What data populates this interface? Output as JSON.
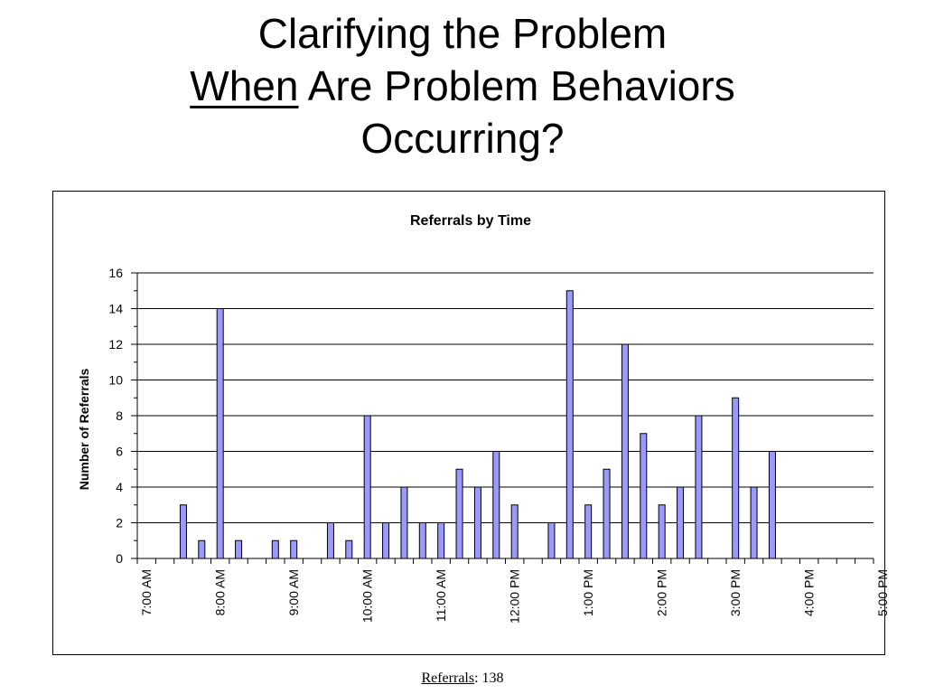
{
  "slide": {
    "title_line1": "Clarifying the Problem",
    "title_line2_emph": "When",
    "title_line2_rest": " Are Problem Behaviors",
    "title_line3": "Occurring?"
  },
  "footer": {
    "label": "Referrals",
    "value": ": 138"
  },
  "colors": {
    "bar_fill": "#9999FF",
    "bar_stroke": "#000000",
    "grid": "#000000"
  },
  "chart_data": {
    "type": "bar",
    "title": "Referrals by Time",
    "xlabel": "",
    "ylabel": "Number of Referrals",
    "ylim": [
      0,
      16
    ],
    "yticks": [
      0,
      2,
      4,
      6,
      8,
      10,
      12,
      14,
      16
    ],
    "grid": true,
    "legend": "none",
    "xticks": [
      "7:00 AM",
      "8:00 AM",
      "9:00 AM",
      "10:00 AM",
      "11:00 AM",
      "12:00 PM",
      "1:00 PM",
      "2:00 PM",
      "3:00 PM",
      "4:00 PM",
      "5:00 PM"
    ],
    "categories": [
      "7:00",
      "7:15",
      "7:30",
      "7:45",
      "8:00",
      "8:15",
      "8:30",
      "8:45",
      "9:00",
      "9:15",
      "9:30",
      "9:45",
      "10:00",
      "10:15",
      "10:30",
      "10:45",
      "11:00",
      "11:15",
      "11:30",
      "11:45",
      "12:00",
      "12:15",
      "12:30",
      "12:45",
      "1:00",
      "1:15",
      "1:30",
      "1:45",
      "2:00",
      "2:15",
      "2:30",
      "2:45",
      "3:00",
      "3:15",
      "3:30",
      "3:45",
      "4:00",
      "4:15",
      "4:30",
      "4:45"
    ],
    "values": [
      0,
      0,
      3,
      1,
      14,
      1,
      0,
      1,
      1,
      0,
      2,
      1,
      8,
      2,
      4,
      2,
      2,
      5,
      4,
      6,
      3,
      0,
      2,
      15,
      3,
      5,
      12,
      7,
      3,
      4,
      8,
      0,
      9,
      4,
      6,
      0,
      0,
      0,
      0,
      0
    ]
  }
}
